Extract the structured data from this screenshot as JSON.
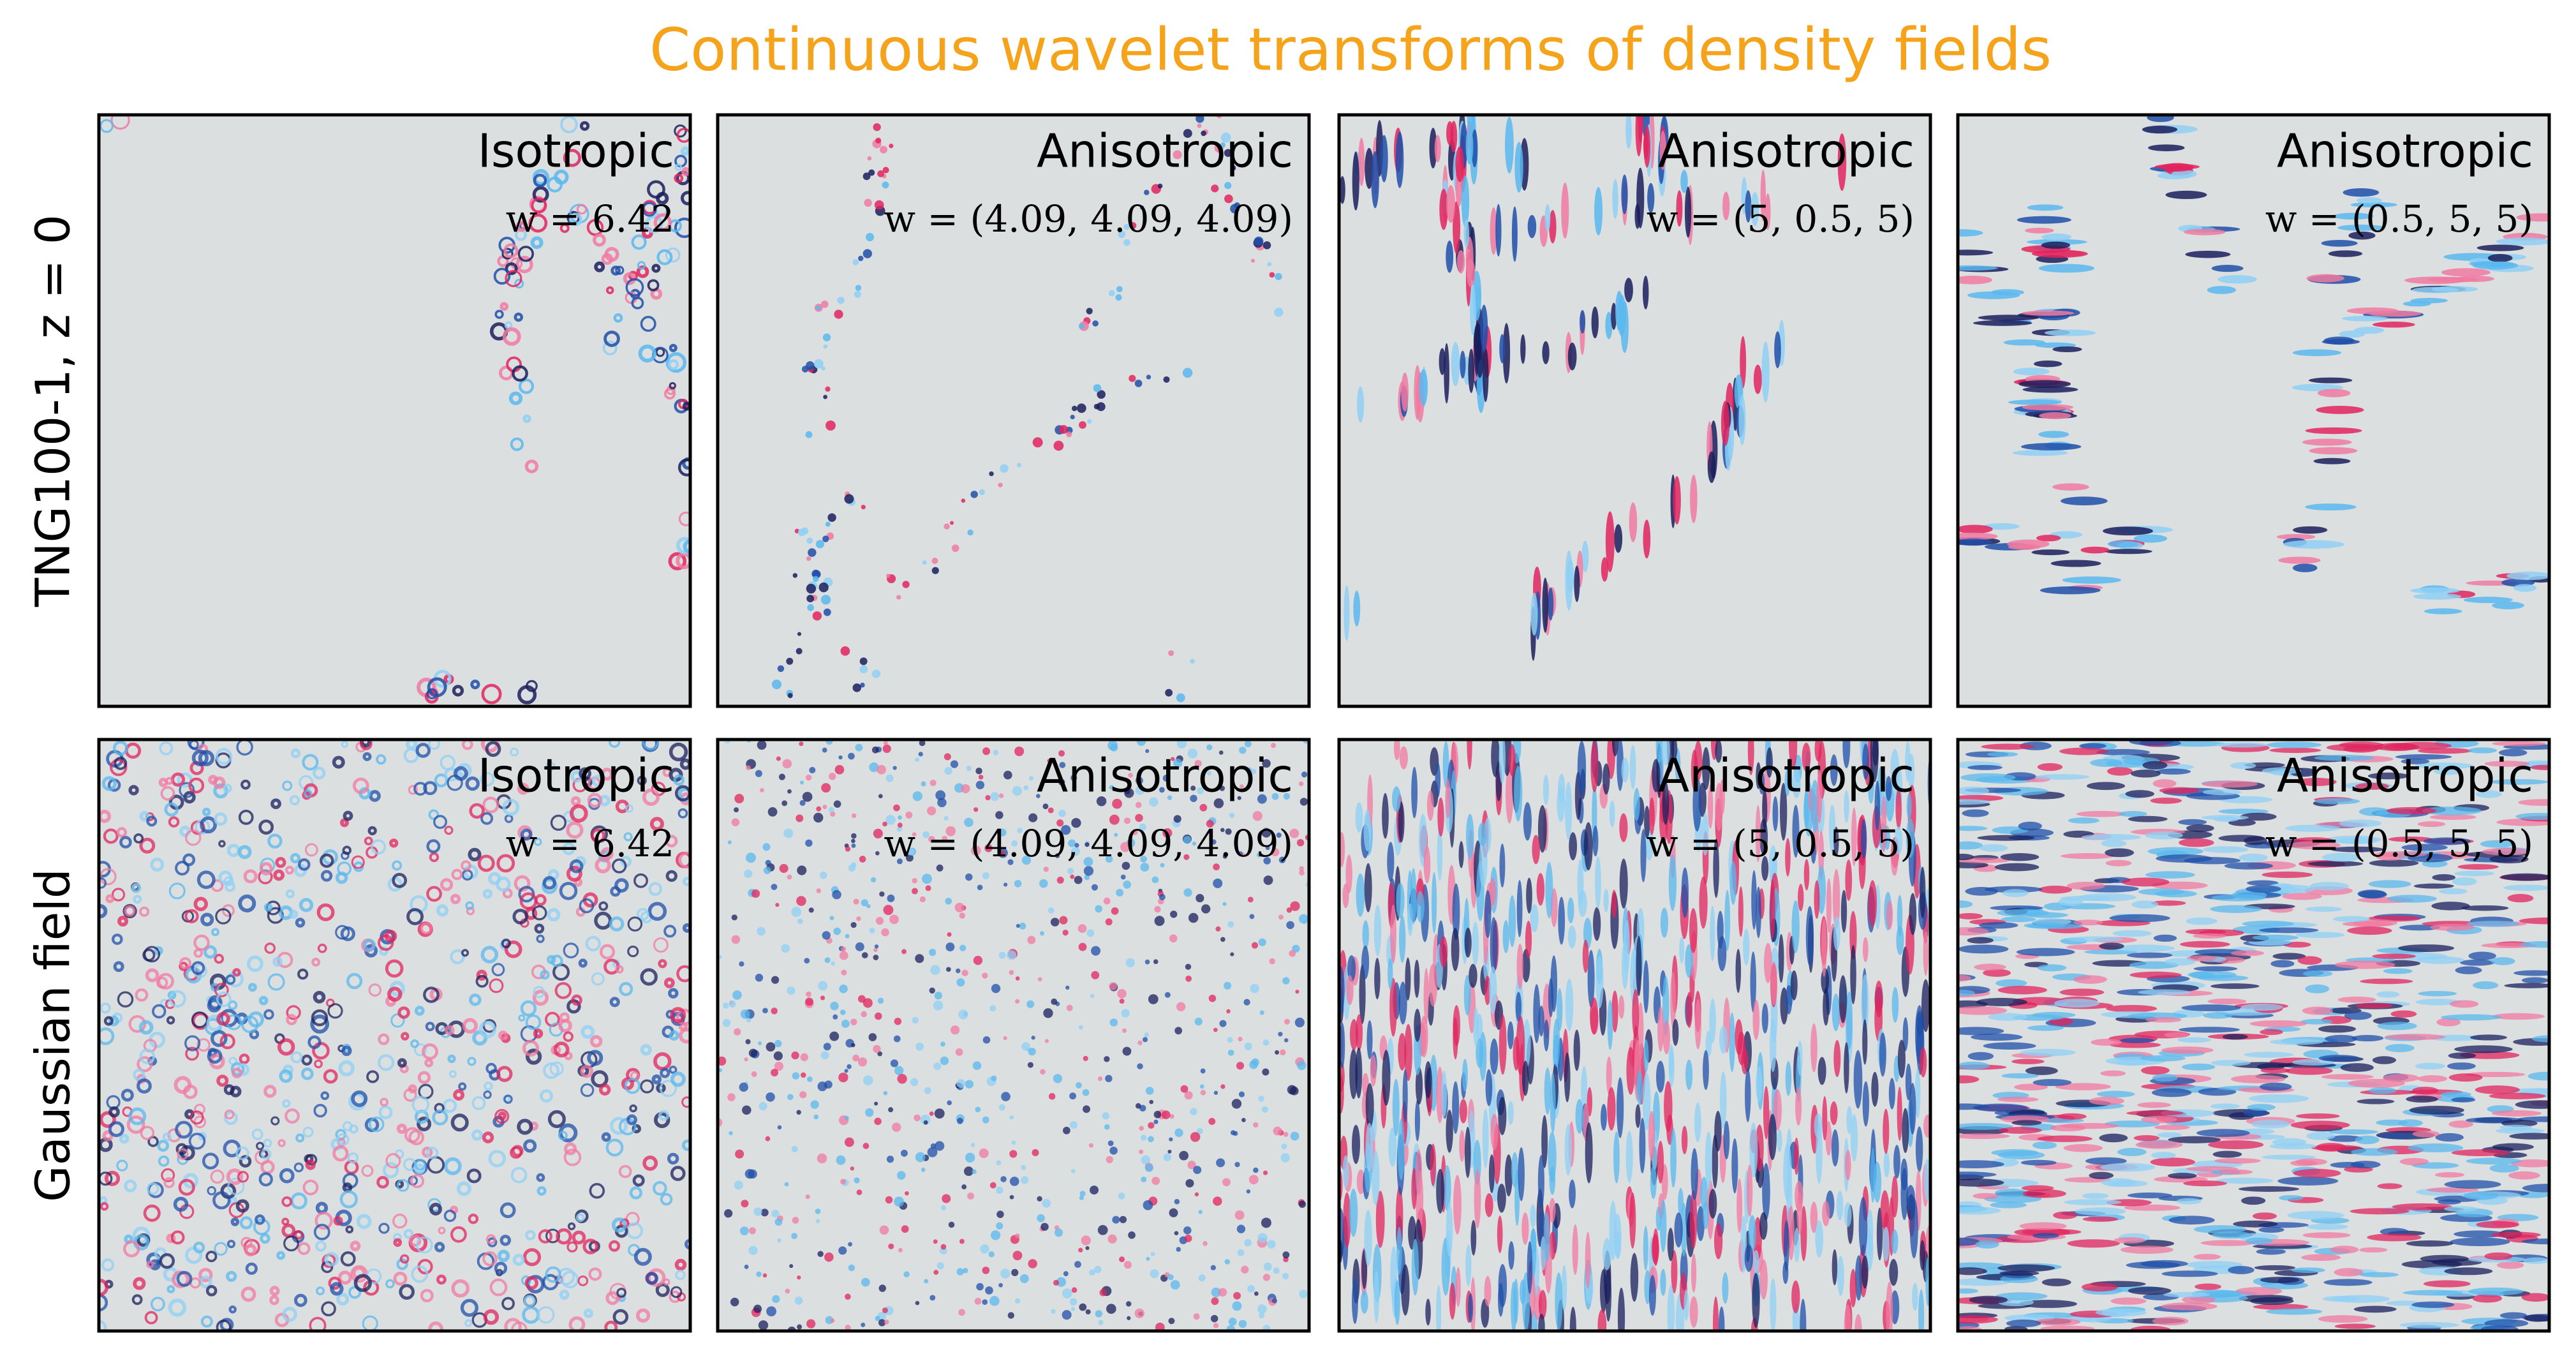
{
  "title": "Continuous wavelet transforms of density fields",
  "rows": [
    {
      "label": "TNG100-1, z = 0",
      "panels": [
        {
          "label": "Isotropic",
          "parameter": "w = 6.42"
        },
        {
          "label": "Anisotropic",
          "parameter": "w = (4.09, 4.09, 4.09)"
        },
        {
          "label": "Anisotropic",
          "parameter": "w = (5, 0.5, 5)"
        },
        {
          "label": "Anisotropic",
          "parameter": "w = (0.5, 5, 5)"
        }
      ]
    },
    {
      "label": "Gaussian field",
      "panels": [
        {
          "label": "Isotropic",
          "parameter": "w = 6.42"
        },
        {
          "label": "Anisotropic",
          "parameter": "w = (4.09, 4.09, 4.09)"
        },
        {
          "label": "Anisotropic",
          "parameter": "w = (5, 0.5, 5)"
        },
        {
          "label": "Anisotropic",
          "parameter": "w = (0.5, 5, 5)"
        }
      ]
    }
  ]
}
